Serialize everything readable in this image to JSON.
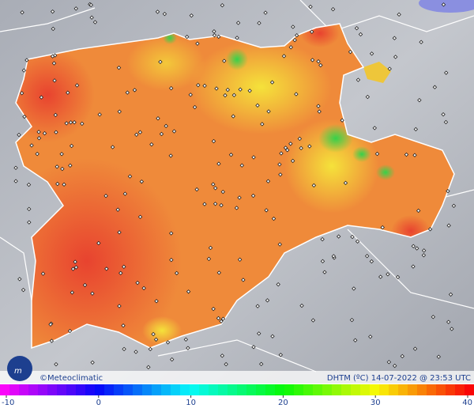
{
  "map": {
    "copyright": "©Meteoclimatic",
    "caption": "DHTM (ºC) 14-07-2022 @ 23:53 UTC",
    "legend": {
      "ticks": [
        -10,
        0,
        10,
        20,
        30,
        40
      ]
    }
  }
}
